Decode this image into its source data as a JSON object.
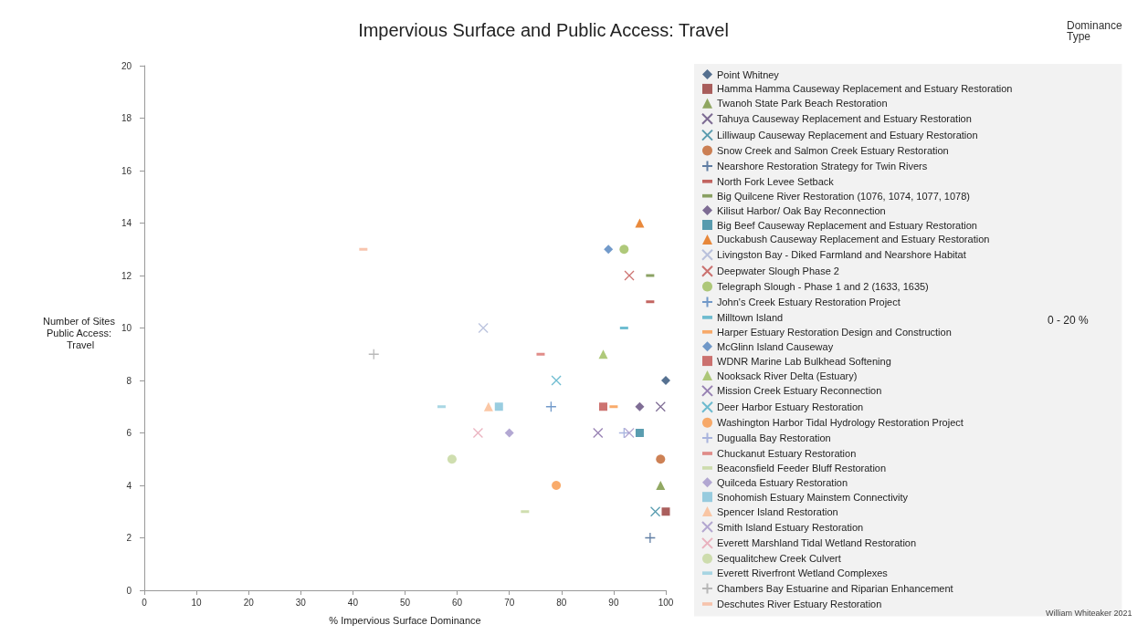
{
  "chart_data": {
    "type": "scatter",
    "title": "Impervious Surface and Public Access: Travel",
    "xlabel": "% Impervious Surface Dominance",
    "ylabel": "Number of Sites Public Access: Travel",
    "legend_title": "Dominance Type",
    "annotations": [
      "0 - 20 %",
      "William Whiteaker 2021"
    ],
    "xlim": [
      0,
      100
    ],
    "xticks": [
      0,
      10,
      20,
      30,
      40,
      50,
      60,
      70,
      80,
      90,
      100
    ],
    "ylim": [
      0,
      20
    ],
    "yticks": [
      0,
      2,
      4,
      6,
      8,
      10,
      12,
      14,
      16,
      18,
      20
    ],
    "grid": false,
    "legend": "right",
    "series": [
      {
        "name": "Point Whitney",
        "color": "#2c4d75",
        "marker": "diamond",
        "x": [
          100
        ],
        "values": [
          8
        ]
      },
      {
        "name": "Hamma Hamma Causeway Replacement and Estuary Restoration",
        "color": "#953735",
        "marker": "square",
        "x": [
          100
        ],
        "values": [
          3
        ]
      },
      {
        "name": "Twanoh State Park Beach Restoration",
        "color": "#76923c",
        "marker": "triangle",
        "x": [
          99
        ],
        "values": [
          4
        ]
      },
      {
        "name": "Tahuya Causeway Replacement and Estuary Restoration",
        "color": "#5f497a",
        "marker": "cross",
        "x": [
          99
        ],
        "values": [
          7
        ]
      },
      {
        "name": "Lilliwaup Causeway Replacement and Estuary Restoration",
        "color": "#31859c",
        "marker": "cross",
        "x": [
          98
        ],
        "values": [
          3
        ]
      },
      {
        "name": "Snow Creek and Salmon Creek Estuary Restoration",
        "color": "#c0622a",
        "marker": "circle",
        "x": [
          99
        ],
        "values": [
          5
        ]
      },
      {
        "name": "Nearshore Restoration Strategy for Twin Rivers",
        "color": "#3a5f8f",
        "marker": "plus",
        "x": [
          97
        ],
        "values": [
          2
        ]
      },
      {
        "name": "North Fork Levee Setback",
        "color": "#b43e3a",
        "x": [
          97
        ],
        "values": [
          11
        ]
      },
      {
        "name": "Big Quilcene River Restoration (1076, 1074, 1077, 1078)",
        "color": "#6e8b3d",
        "x": [
          97
        ],
        "values": [
          12
        ]
      },
      {
        "name": "Kilisut Harbor/ Oak Bay Reconnection",
        "color": "#5f497a",
        "marker": "diamond",
        "x": [
          95
        ],
        "values": [
          7
        ]
      },
      {
        "name": "Big Beef Causeway Replacement and Estuary Restoration",
        "color": "#31859c",
        "marker": "square",
        "x": [
          95
        ],
        "values": [
          6
        ]
      },
      {
        "name": "Duckabush Causeway Replacement and Estuary Restoration",
        "color": "#e46c0a",
        "marker": "triangle",
        "x": [
          95
        ],
        "values": [
          14
        ]
      },
      {
        "name": "Livingston Bay - Diked Farmland and Nearshore Habitat",
        "color": "#aab4d6",
        "marker": "cross",
        "x": [
          65
        ],
        "values": [
          10
        ]
      },
      {
        "name": "Deepwater Slough Phase 2",
        "color": "#c0504d",
        "marker": "cross",
        "x": [
          93
        ],
        "values": [
          12
        ]
      },
      {
        "name": "Telegraph Slough - Phase 1 and 2 (1633, 1635)",
        "color": "#9bbb59",
        "marker": "circle",
        "x": [
          92
        ],
        "values": [
          13
        ]
      },
      {
        "name": "John's Creek Estuary Restoration Project",
        "color": "#4f81bd",
        "marker": "plus",
        "x": [
          78
        ],
        "values": [
          7
        ]
      },
      {
        "name": "Milltown Island",
        "color": "#4bacc6",
        "x": [
          92
        ],
        "values": [
          10
        ]
      },
      {
        "name": "Harper Estuary Restoration Design and Construction",
        "color": "#f79646",
        "x": [
          90
        ],
        "values": [
          7
        ]
      },
      {
        "name": "McGlinn Island Causeway",
        "color": "#4f81bd",
        "marker": "diamond",
        "x": [
          89
        ],
        "values": [
          13
        ]
      },
      {
        "name": "WDNR Marine Lab Bulkhead Softening",
        "color": "#c0504d",
        "marker": "square",
        "x": [
          88
        ],
        "values": [
          7
        ]
      },
      {
        "name": "Nooksack River Delta (Estuary)",
        "color": "#9bbb59",
        "marker": "triangle",
        "x": [
          88
        ],
        "values": [
          9
        ]
      },
      {
        "name": "Mission Creek Estuary Reconnection",
        "color": "#8064a2",
        "marker": "cross",
        "x": [
          87
        ],
        "values": [
          6
        ]
      },
      {
        "name": "Deer Harbor Estuary Restoration",
        "color": "#4bacc6",
        "marker": "cross",
        "x": [
          79
        ],
        "values": [
          8
        ]
      },
      {
        "name": "Washington Harbor Tidal Hydrology Restoration Project",
        "color": "#f79646",
        "marker": "circle",
        "x": [
          79
        ],
        "values": [
          4
        ]
      },
      {
        "name": "Dugualla Bay Restoration",
        "color": "#95a3d7",
        "marker": "plus",
        "x": [
          92
        ],
        "values": [
          6
        ]
      },
      {
        "name": "Chuckanut Estuary Restoration",
        "color": "#d9706c",
        "x": [
          76
        ],
        "values": [
          9
        ]
      },
      {
        "name": "Beaconsfield Feeder Bluff Restoration",
        "color": "#c3d69b",
        "x": [
          73
        ],
        "values": [
          3
        ]
      },
      {
        "name": "Quilceda Estuary Restoration",
        "color": "#a092c8",
        "marker": "diamond",
        "x": [
          70
        ],
        "values": [
          6
        ]
      },
      {
        "name": "Snohomish Estuary Mainstem Connectivity",
        "color": "#7fc0d8",
        "marker": "square",
        "x": [
          68
        ],
        "values": [
          7
        ]
      },
      {
        "name": "Spencer Island Restoration",
        "color": "#fab98f",
        "marker": "triangle",
        "x": [
          66
        ],
        "values": [
          7
        ]
      },
      {
        "name": "Smith Island Estuary Restoration",
        "color": "#a393c7",
        "marker": "cross",
        "x": [
          93
        ],
        "values": [
          6
        ]
      },
      {
        "name": "Everett Marshland Tidal Wetland Restoration",
        "color": "#e6a0b0",
        "marker": "cross",
        "x": [
          64
        ],
        "values": [
          6
        ]
      },
      {
        "name": "Sequalitchew Creek Culvert",
        "color": "#c3d69b",
        "marker": "circle",
        "x": [
          59
        ],
        "values": [
          5
        ]
      },
      {
        "name": "Everett Riverfront Wetland Complexes",
        "color": "#93cddd",
        "x": [
          57
        ],
        "values": [
          7
        ]
      },
      {
        "name": "Chambers Bay Estuarine and Riparian Enhancement",
        "color": "#a6a6a6",
        "marker": "plus",
        "x": [
          44
        ],
        "values": [
          9
        ]
      },
      {
        "name": "Deschutes River Estuary Restoration",
        "color": "#f6b69a",
        "x": [
          42
        ],
        "values": [
          13
        ]
      }
    ]
  }
}
